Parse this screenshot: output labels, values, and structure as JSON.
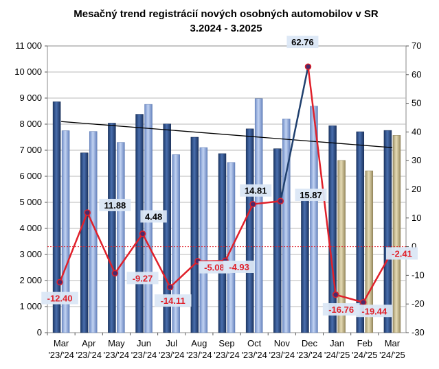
{
  "chart_data": {
    "type": "bar+line",
    "title": "Mesačný trend registrácií nových osobných automobilov  v SR",
    "subtitle": "3.2024 - 3.2025",
    "categories": [
      [
        "Mar",
        "'23/'24"
      ],
      [
        "Apr",
        "'23/'24"
      ],
      [
        "May",
        "'23/'24"
      ],
      [
        "Jun",
        "'23/'24"
      ],
      [
        "Jul",
        "'23/'24"
      ],
      [
        "Aug",
        "'23/'24"
      ],
      [
        "Sep",
        "'23/'24"
      ],
      [
        "Oct",
        "'23/'24"
      ],
      [
        "Nov",
        "'23/'24"
      ],
      [
        "Dec",
        "'23/'24"
      ],
      [
        "Jan",
        "'24/'25"
      ],
      [
        "Feb",
        "'24/'25"
      ],
      [
        "Mar",
        "'24/'25"
      ]
    ],
    "series": [
      {
        "axis": "left",
        "values": [
          8860,
          6900,
          8040,
          8380,
          8010,
          7500,
          6870,
          7820,
          7060,
          5330,
          7940,
          7710,
          7760
        ],
        "color": "#2e4d86"
      },
      {
        "axis": "left",
        "values": [
          7750,
          7720,
          7300,
          8760,
          6830,
          7100,
          6530,
          8980,
          8200,
          8690,
          6610,
          6210,
          7570
        ],
        "color": "#8aa6dc",
        "color_last3": "#c7bb8e"
      },
      {
        "axis": "right",
        "type": "line",
        "values": [
          -12.4,
          11.88,
          -9.27,
          4.48,
          -14.11,
          -5.08,
          -4.93,
          14.81,
          15.87,
          62.76,
          -16.76,
          -19.44,
          -2.41
        ],
        "color": "#e0202a",
        "color_nov_dec": "#20406e"
      }
    ],
    "data_labels": [
      "-12.40",
      "11.88",
      "-9.27",
      "4.48",
      "-14.11",
      "-5.08",
      "-4.93",
      "14.81",
      "15.87",
      "62.76",
      "-16.76",
      "-19.44",
      "-2.41"
    ],
    "trendline": {
      "start": 8100,
      "end": 7100,
      "color": "#000000"
    },
    "left_axis": {
      "min": 0,
      "max": 11000,
      "step": 1000,
      "ticks": [
        "0",
        "1 000",
        "2 000",
        "3 000",
        "4 000",
        "5 000",
        "6 000",
        "7 000",
        "8 000",
        "9 000",
        "10 000",
        "11 000"
      ]
    },
    "right_axis": {
      "min": -30,
      "max": 70,
      "step": 10,
      "ticks": [
        "-30",
        "-20",
        "-10",
        "0",
        "10",
        "20",
        "30",
        "40",
        "50",
        "60",
        "70"
      ]
    },
    "grid": true,
    "legend": "none"
  }
}
